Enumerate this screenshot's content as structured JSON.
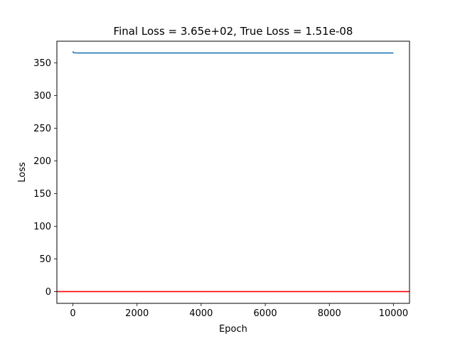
{
  "chart_data": {
    "type": "line",
    "title": "Final Loss = 3.65e+02, True Loss = 1.51e-08",
    "xlabel": "Epoch",
    "ylabel": "Loss",
    "xlim": [
      -500,
      10500
    ],
    "ylim": [
      -18,
      383
    ],
    "xticks": [
      0,
      2000,
      4000,
      6000,
      8000,
      10000
    ],
    "yticks": [
      0,
      50,
      100,
      150,
      200,
      250,
      300,
      350
    ],
    "grid": false,
    "series": [
      {
        "color": "#1f77b4",
        "x": [
          0,
          10,
          20,
          50,
          100,
          200,
          500,
          1000,
          2000,
          5000,
          8000,
          10000
        ],
        "y": [
          367.5,
          366.0,
          365.4,
          365.2,
          365.1,
          365.05,
          365.0,
          365.0,
          365.0,
          365.0,
          365.0,
          365.0
        ]
      }
    ],
    "reference_line": {
      "y": 1.51e-08,
      "color": "#ff0000"
    }
  }
}
